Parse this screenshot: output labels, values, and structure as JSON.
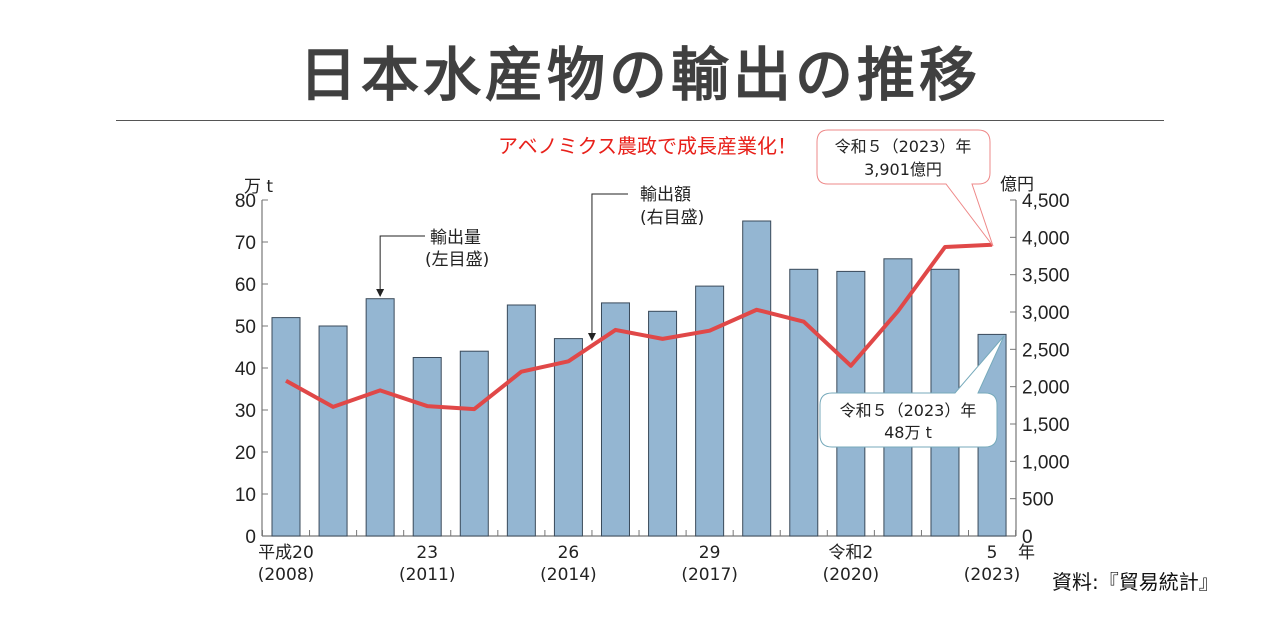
{
  "title": "日本水産物の輸出の推移",
  "source": "資料:『貿易統計』",
  "chart_data": {
    "type": "bar+line",
    "categories": [
      "2008",
      "2009",
      "2010",
      "2011",
      "2012",
      "2013",
      "2014",
      "2015",
      "2016",
      "2017",
      "2018",
      "2019",
      "2020",
      "2021",
      "2022",
      "2023"
    ],
    "x_tick_labels": [
      {
        "index": 0,
        "top": "平成20",
        "bottom": "(2008)"
      },
      {
        "index": 3,
        "top": "23",
        "bottom": "(2011)"
      },
      {
        "index": 6,
        "top": "26",
        "bottom": "(2014)"
      },
      {
        "index": 9,
        "top": "29",
        "bottom": "(2017)"
      },
      {
        "index": 12,
        "top": "令和2",
        "bottom": "(2020)"
      },
      {
        "index": 15,
        "top": "5",
        "bottom": "(2023)"
      }
    ],
    "x_unit": "年",
    "series": [
      {
        "name": "輸出量",
        "label": "輸出量",
        "sublabel": "(左目盛)",
        "type": "bar",
        "axis": "left",
        "color": "#94b6d2",
        "values": [
          52,
          50,
          56.5,
          42.5,
          44,
          55,
          47,
          55.5,
          53.5,
          59.5,
          75,
          63.5,
          63,
          66,
          63.5,
          48
        ]
      },
      {
        "name": "輸出額",
        "label": "輸出額",
        "sublabel": "(右目盛)",
        "type": "line",
        "axis": "right",
        "color": "#e04848",
        "values": [
          2080,
          1730,
          1950,
          1740,
          1700,
          2200,
          2340,
          2760,
          2640,
          2750,
          3030,
          2870,
          2280,
          3010,
          3870,
          3901
        ]
      }
    ],
    "left_axis": {
      "unit": "万 t",
      "ylim": [
        0,
        80
      ],
      "ticks": [
        "0",
        "10",
        "20",
        "30",
        "40",
        "50",
        "60",
        "70",
        "80"
      ]
    },
    "right_axis": {
      "unit": "億円",
      "ylim": [
        0,
        4500
      ],
      "ticks": [
        "0",
        "500",
        "1,000",
        "1,500",
        "2,000",
        "2,500",
        "3,000",
        "3,500",
        "4,000",
        "4,500"
      ]
    },
    "annotations": {
      "headline": "アベノミクス農政で成長産業化！",
      "value_callout": {
        "line1": "令和５（2023）年",
        "line2": "3,901億円"
      },
      "volume_callout": {
        "line1": "令和５（2023）年",
        "line2": "48万 t"
      }
    }
  }
}
